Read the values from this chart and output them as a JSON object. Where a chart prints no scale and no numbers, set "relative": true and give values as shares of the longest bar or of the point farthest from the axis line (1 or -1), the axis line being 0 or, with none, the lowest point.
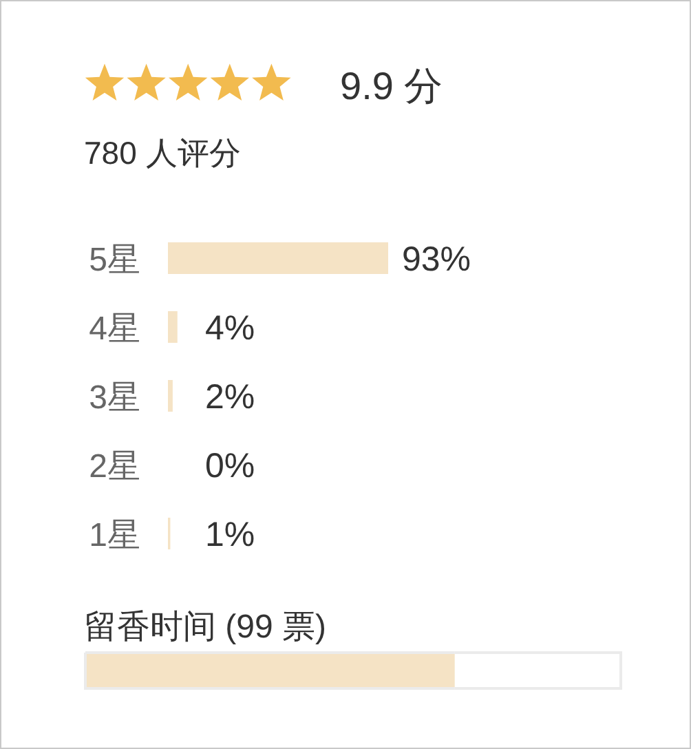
{
  "chart_data": [
    {
      "type": "bar",
      "orientation": "horizontal",
      "title": "9.9 分",
      "subtitle": "780 人评分",
      "categories": [
        "5星",
        "4星",
        "3星",
        "2星",
        "1星"
      ],
      "values": [
        93,
        4,
        2,
        0,
        1
      ],
      "color": "#f5e3c5",
      "value_labels": [
        "93%",
        "4%",
        "2%",
        "0%",
        "1%"
      ]
    },
    {
      "type": "bar",
      "orientation": "horizontal",
      "stacked": true,
      "relative": true,
      "title": "留香时间 (99 票)",
      "categories": [
        null
      ],
      "series": [
        {
          "color": "#f5e3c5",
          "values": [
            0.69
          ]
        },
        {
          "color": "#ffffff",
          "values": [
            0.31
          ]
        }
      ]
    }
  ]
}
